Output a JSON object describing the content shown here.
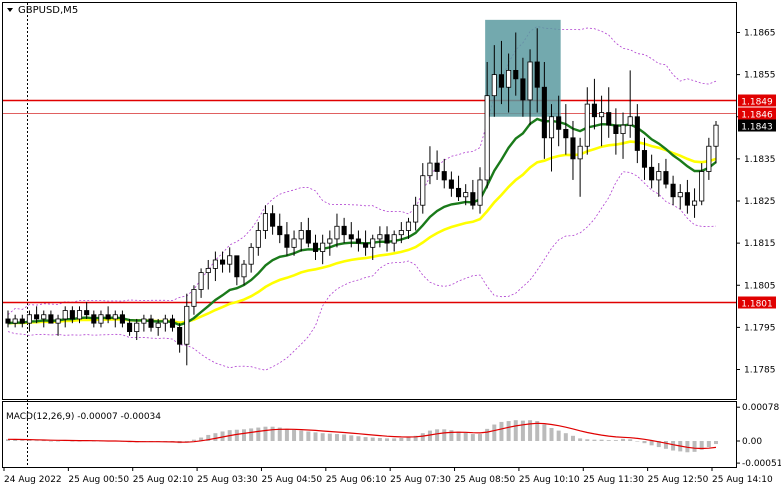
{
  "window": {
    "symbol_label": "GBPUSD,M5",
    "menu_arrow_icon": "triangle-down-icon"
  },
  "chart_data": [
    {
      "type": "candlestick",
      "symbol": "GBPUSD",
      "timeframe": "M5",
      "ylim": [
        1.1778,
        1.1872
      ],
      "y_ticks": [
        "1.1865",
        "1.1855",
        "1.1845",
        "1.1835",
        "1.1825",
        "1.1815",
        "1.1805",
        "1.1795",
        "1.1785"
      ],
      "x_ticks": [
        "24 Aug 2022",
        "25 Aug 00:50",
        "25 Aug 02:10",
        "25 Aug 03:30",
        "25 Aug 04:50",
        "25 Aug 06:10",
        "25 Aug 07:30",
        "25 Aug 08:50",
        "25 Aug 10:10",
        "25 Aug 11:30",
        "25 Aug 12:50",
        "25 Aug 14:10"
      ],
      "candles_ohlc": [
        [
          1.1797,
          1.1799,
          1.1795,
          1.1796
        ],
        [
          1.1796,
          1.1798,
          1.1795,
          1.1797
        ],
        [
          1.1797,
          1.1798,
          1.1795,
          1.1796
        ],
        [
          1.1796,
          1.1799,
          1.1794,
          1.1798
        ],
        [
          1.1798,
          1.18,
          1.1796,
          1.1797
        ],
        [
          1.1797,
          1.1799,
          1.1795,
          1.1798
        ],
        [
          1.1798,
          1.1799,
          1.1796,
          1.1796
        ],
        [
          1.1796,
          1.1798,
          1.1793,
          1.1797
        ],
        [
          1.1797,
          1.18,
          1.1795,
          1.1799
        ],
        [
          1.1799,
          1.18,
          1.1796,
          1.1797
        ],
        [
          1.1797,
          1.18,
          1.1796,
          1.1799
        ],
        [
          1.1799,
          1.1801,
          1.1797,
          1.1798
        ],
        [
          1.1798,
          1.1799,
          1.1795,
          1.1796
        ],
        [
          1.1796,
          1.1799,
          1.1795,
          1.1798
        ],
        [
          1.1798,
          1.18,
          1.1796,
          1.1797
        ],
        [
          1.1797,
          1.1799,
          1.1795,
          1.1798
        ],
        [
          1.1798,
          1.1799,
          1.1795,
          1.1796
        ],
        [
          1.1796,
          1.1797,
          1.1793,
          1.1794
        ],
        [
          1.1794,
          1.1797,
          1.1792,
          1.1796
        ],
        [
          1.1796,
          1.1798,
          1.1794,
          1.1797
        ],
        [
          1.1797,
          1.1798,
          1.1794,
          1.1795
        ],
        [
          1.1795,
          1.1797,
          1.1793,
          1.1796
        ],
        [
          1.1796,
          1.1798,
          1.1794,
          1.1797
        ],
        [
          1.1797,
          1.1798,
          1.1794,
          1.1795
        ],
        [
          1.1795,
          1.1796,
          1.1789,
          1.1791
        ],
        [
          1.1791,
          1.1803,
          1.1786,
          1.18
        ],
        [
          1.18,
          1.1805,
          1.1798,
          1.1804
        ],
        [
          1.1804,
          1.1809,
          1.1802,
          1.1808
        ],
        [
          1.1808,
          1.1811,
          1.1804,
          1.1809
        ],
        [
          1.1809,
          1.1813,
          1.1806,
          1.1811
        ],
        [
          1.1811,
          1.1813,
          1.1808,
          1.181
        ],
        [
          1.181,
          1.1814,
          1.1808,
          1.1812
        ],
        [
          1.1812,
          1.1812,
          1.1805,
          1.1807
        ],
        [
          1.1807,
          1.1811,
          1.1805,
          1.181
        ],
        [
          1.181,
          1.1815,
          1.1808,
          1.1814
        ],
        [
          1.1814,
          1.182,
          1.1812,
          1.1818
        ],
        [
          1.1818,
          1.1824,
          1.1816,
          1.1822
        ],
        [
          1.1822,
          1.1824,
          1.1817,
          1.1819
        ],
        [
          1.1819,
          1.1822,
          1.1815,
          1.1817
        ],
        [
          1.1817,
          1.182,
          1.1812,
          1.1814
        ],
        [
          1.1814,
          1.1818,
          1.1812,
          1.1816
        ],
        [
          1.1816,
          1.182,
          1.1813,
          1.1818
        ],
        [
          1.1818,
          1.1821,
          1.1814,
          1.1815
        ],
        [
          1.1815,
          1.1817,
          1.1811,
          1.1813
        ],
        [
          1.1813,
          1.1817,
          1.181,
          1.1815
        ],
        [
          1.1815,
          1.1818,
          1.1812,
          1.1816
        ],
        [
          1.1816,
          1.1822,
          1.1814,
          1.1819
        ],
        [
          1.1819,
          1.1821,
          1.1815,
          1.1817
        ],
        [
          1.1817,
          1.182,
          1.1814,
          1.1816
        ],
        [
          1.1816,
          1.1818,
          1.1813,
          1.1815
        ],
        [
          1.1815,
          1.1818,
          1.1812,
          1.1814
        ],
        [
          1.1814,
          1.1817,
          1.1811,
          1.1816
        ],
        [
          1.1816,
          1.1819,
          1.1814,
          1.1817
        ],
        [
          1.1817,
          1.1819,
          1.1813,
          1.1815
        ],
        [
          1.1815,
          1.1818,
          1.1813,
          1.1817
        ],
        [
          1.1817,
          1.182,
          1.1815,
          1.1818
        ],
        [
          1.1818,
          1.1821,
          1.1816,
          1.182
        ],
        [
          1.182,
          1.1826,
          1.1818,
          1.1824
        ],
        [
          1.1824,
          1.1834,
          1.1822,
          1.1831
        ],
        [
          1.1831,
          1.1838,
          1.1829,
          1.1834
        ],
        [
          1.1834,
          1.1837,
          1.183,
          1.1832
        ],
        [
          1.1832,
          1.1835,
          1.1828,
          1.183
        ],
        [
          1.183,
          1.1832,
          1.1826,
          1.1828
        ],
        [
          1.1828,
          1.1831,
          1.1825,
          1.1826
        ],
        [
          1.1826,
          1.1829,
          1.1824,
          1.1827
        ],
        [
          1.1827,
          1.183,
          1.1823,
          1.1824
        ],
        [
          1.1824,
          1.1833,
          1.1822,
          1.183
        ],
        [
          1.183,
          1.1858,
          1.1828,
          1.185
        ],
        [
          1.185,
          1.1862,
          1.1845,
          1.1855
        ],
        [
          1.1855,
          1.1863,
          1.1848,
          1.1852
        ],
        [
          1.1852,
          1.186,
          1.1846,
          1.1856
        ],
        [
          1.1856,
          1.1865,
          1.185,
          1.1854
        ],
        [
          1.1854,
          1.1859,
          1.1845,
          1.1849
        ],
        [
          1.1849,
          1.1861,
          1.1843,
          1.1858
        ],
        [
          1.1858,
          1.1866,
          1.1846,
          1.1852
        ],
        [
          1.1852,
          1.1858,
          1.1835,
          1.184
        ],
        [
          1.184,
          1.1848,
          1.1832,
          1.1845
        ],
        [
          1.1845,
          1.185,
          1.1838,
          1.1842
        ],
        [
          1.1842,
          1.1848,
          1.1836,
          1.184
        ],
        [
          1.184,
          1.1844,
          1.183,
          1.1835
        ],
        [
          1.1835,
          1.184,
          1.1826,
          1.1838
        ],
        [
          1.1838,
          1.1852,
          1.1836,
          1.1848
        ],
        [
          1.1848,
          1.1854,
          1.1842,
          1.1845
        ],
        [
          1.1845,
          1.185,
          1.1838,
          1.1846
        ],
        [
          1.1846,
          1.1852,
          1.184,
          1.1843
        ],
        [
          1.1843,
          1.1847,
          1.1836,
          1.1841
        ],
        [
          1.1841,
          1.1846,
          1.1835,
          1.1843
        ],
        [
          1.1843,
          1.1856,
          1.184,
          1.1845
        ],
        [
          1.1845,
          1.1848,
          1.1834,
          1.1837
        ],
        [
          1.1837,
          1.184,
          1.183,
          1.1833
        ],
        [
          1.1833,
          1.1836,
          1.1828,
          1.183
        ],
        [
          1.183,
          1.1834,
          1.1826,
          1.1832
        ],
        [
          1.1832,
          1.1835,
          1.1828,
          1.1829
        ],
        [
          1.1829,
          1.1831,
          1.1824,
          1.1826
        ],
        [
          1.1826,
          1.1829,
          1.1823,
          1.1827
        ],
        [
          1.1827,
          1.183,
          1.1822,
          1.1824
        ],
        [
          1.1824,
          1.1828,
          1.1821,
          1.1825
        ],
        [
          1.1825,
          1.1834,
          1.1824,
          1.1832
        ],
        [
          1.1832,
          1.184,
          1.183,
          1.1838
        ],
        [
          1.1838,
          1.1844,
          1.1834,
          1.1843
        ]
      ],
      "moving_averages": [
        {
          "color": "#ffff00",
          "values_start": 1.1796,
          "values_end": 1.1837
        },
        {
          "color": "#1a7a1a",
          "values_start": 1.1798,
          "values_end": 1.1836
        }
      ],
      "horizontal_levels": [
        {
          "label": "1.1849",
          "value": 1.1849,
          "color": "#e00000"
        },
        {
          "label": "1.1846",
          "value": 1.1846,
          "color": "#e06060"
        },
        {
          "label": "1.1801",
          "value": 1.1801,
          "color": "#e00000"
        }
      ],
      "current_price_label": "1.1843",
      "highlight_box_color": "#5b9aa0",
      "grid": false
    },
    {
      "type": "macd",
      "title": "MACD(12,26,9) -0.00007 -0.00034",
      "y_ticks": [
        "0.00078",
        "0.00",
        "-0.00051"
      ],
      "ylim": [
        -0.0006,
        0.0009
      ],
      "histogram": [
        4e-05,
        3e-05,
        2e-05,
        2e-05,
        1e-05,
        1e-05,
        0.0,
        0.0,
        1e-05,
        0.0,
        0.0,
        1e-05,
        0.0,
        -1e-05,
        -1e-05,
        -1e-05,
        -2e-05,
        -3e-05,
        -3e-05,
        -2e-05,
        -2e-05,
        -2e-05,
        -2e-05,
        -3e-05,
        -5e-05,
        -3e-05,
        3e-05,
        8e-05,
        0.00014,
        0.00018,
        0.00022,
        0.00025,
        0.00026,
        0.00027,
        0.00029,
        0.00031,
        0.00033,
        0.00033,
        0.00031,
        0.00028,
        0.00026,
        0.00024,
        0.00022,
        0.0002,
        0.00018,
        0.00017,
        0.00016,
        0.00015,
        0.00013,
        0.00011,
        9e-05,
        8e-05,
        7e-05,
        6e-05,
        6e-05,
        7e-05,
        8e-05,
        0.00012,
        0.00018,
        0.00024,
        0.00027,
        0.00027,
        0.00025,
        0.00022,
        0.00019,
        0.00016,
        0.00016,
        0.00028,
        0.00038,
        0.00044,
        0.00046,
        0.00048,
        0.00047,
        0.00048,
        0.00046,
        0.00038,
        0.0003,
        0.00024,
        0.00018,
        0.00012,
        6e-05,
        4e-05,
        3e-05,
        3e-05,
        2e-05,
        2e-05,
        5e-05,
        4e-05,
        0.0,
        -5e-05,
        -0.0001,
        -0.00014,
        -0.00018,
        -0.00022,
        -0.00024,
        -0.00026,
        -0.00025,
        -0.0002,
        -0.00014,
        -7e-05
      ],
      "signal_color": "#e00000",
      "histogram_color": "#bbbbbb"
    }
  ]
}
